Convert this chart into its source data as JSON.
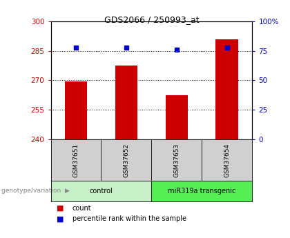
{
  "title": "GDS2066 / 250993_at",
  "samples": [
    "GSM37651",
    "GSM37652",
    "GSM37653",
    "GSM37654"
  ],
  "bar_values": [
    269.5,
    277.5,
    262.5,
    291.0
  ],
  "percentile_values": [
    286.5,
    286.5,
    285.5,
    286.5
  ],
  "bar_color": "#cc0000",
  "percentile_color": "#0000cc",
  "ylim_left": [
    240,
    300
  ],
  "ylim_right": [
    0,
    100
  ],
  "yticks_left": [
    240,
    255,
    270,
    285,
    300
  ],
  "yticks_right": [
    0,
    25,
    50,
    75,
    100
  ],
  "ytick_labels_left": [
    "240",
    "255",
    "270",
    "285",
    "300"
  ],
  "ytick_labels_right": [
    "0",
    "25",
    "50",
    "75",
    "100%"
  ],
  "groups": [
    {
      "label": "control",
      "indices": [
        0,
        1
      ],
      "color": "#c8f0c8"
    },
    {
      "label": "miR319a transgenic",
      "indices": [
        2,
        3
      ],
      "color": "#55ee55"
    }
  ],
  "background_color": "#ffffff",
  "bar_width": 0.45,
  "x_positions": [
    1,
    2,
    3,
    4
  ],
  "sample_box_color": "#d0d0d0",
  "grid_dotted_color": "#000000"
}
